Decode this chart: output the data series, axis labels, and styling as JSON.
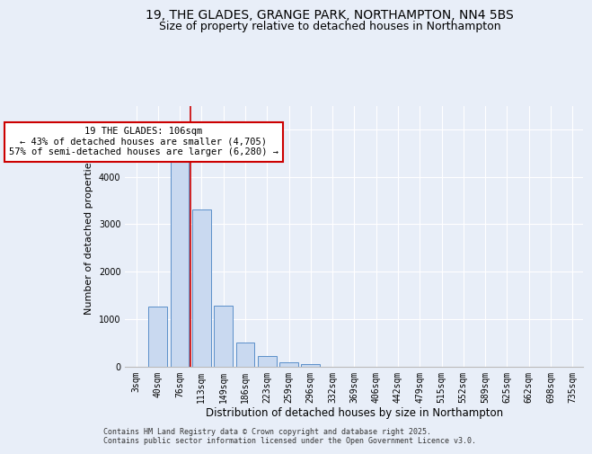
{
  "title1": "19, THE GLADES, GRANGE PARK, NORTHAMPTON, NN4 5BS",
  "title2": "Size of property relative to detached houses in Northampton",
  "xlabel": "Distribution of detached houses by size in Northampton",
  "ylabel": "Number of detached properties",
  "categories": [
    "3sqm",
    "40sqm",
    "76sqm",
    "113sqm",
    "149sqm",
    "186sqm",
    "223sqm",
    "259sqm",
    "296sqm",
    "332sqm",
    "369sqm",
    "406sqm",
    "442sqm",
    "479sqm",
    "515sqm",
    "552sqm",
    "589sqm",
    "625sqm",
    "662sqm",
    "698sqm",
    "735sqm"
  ],
  "values": [
    0,
    1270,
    4350,
    3310,
    1280,
    500,
    220,
    85,
    50,
    0,
    0,
    0,
    0,
    0,
    0,
    0,
    0,
    0,
    0,
    0,
    0
  ],
  "bar_color": "#c9d9f0",
  "bar_edge_color": "#5b8fc9",
  "vline_color": "#cc0000",
  "annotation_box_color": "#cc0000",
  "annotation_title": "19 THE GLADES: 106sqm",
  "annotation_line1": "← 43% of detached houses are smaller (4,705)",
  "annotation_line2": "57% of semi-detached houses are larger (6,280) →",
  "ylim": [
    0,
    5500
  ],
  "footer1": "Contains HM Land Registry data © Crown copyright and database right 2025.",
  "footer2": "Contains public sector information licensed under the Open Government Licence v3.0.",
  "bg_color": "#e8eef8",
  "plot_bg_color": "#e8eef8",
  "grid_color": "#ffffff",
  "title_fontsize": 10,
  "subtitle_fontsize": 9,
  "tick_fontsize": 7,
  "ylabel_fontsize": 8,
  "xlabel_fontsize": 8.5,
  "footer_fontsize": 6,
  "annotation_fontsize": 7.5
}
